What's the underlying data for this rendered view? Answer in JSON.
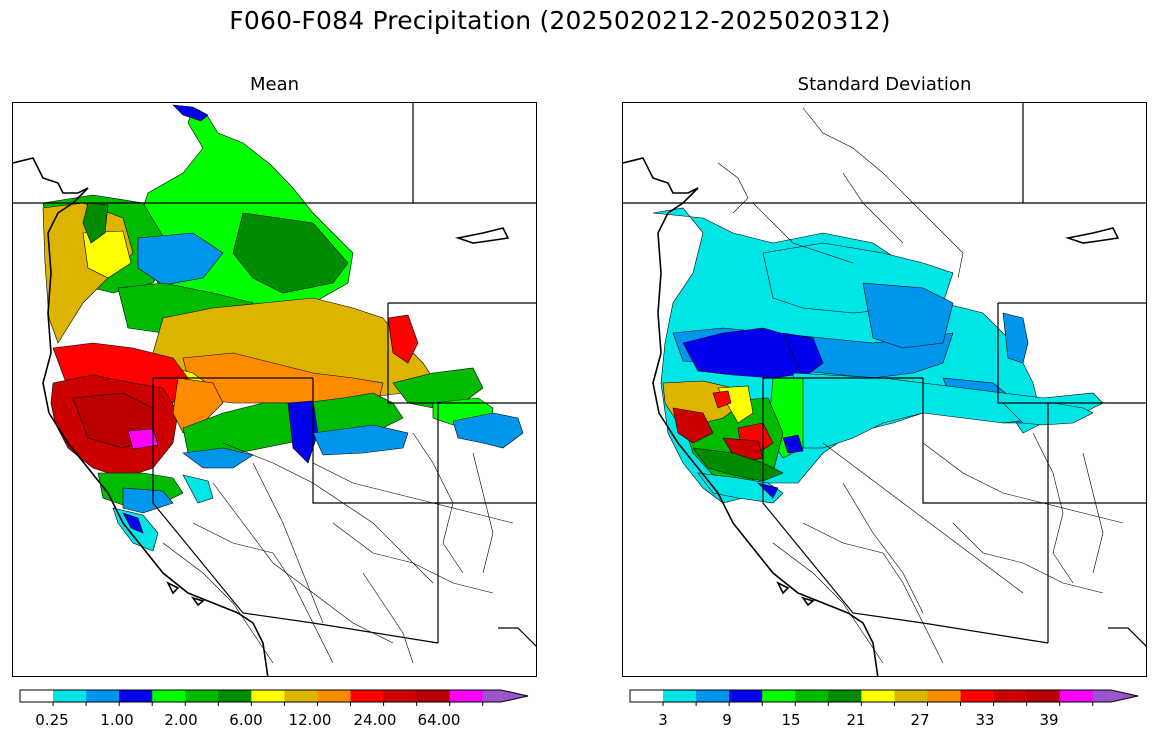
{
  "figure": {
    "title": "F060-F084 Precipitation (2025020212-2025020312)"
  },
  "panels": [
    {
      "id": "mean",
      "title": "Mean",
      "colorbar": {
        "colors": [
          "#ffffff",
          "#00e5e5",
          "#0096ee",
          "#0000ee",
          "#00ff00",
          "#00bb00",
          "#008c00",
          "#ffff00",
          "#ddb400",
          "#ff8c00",
          "#ff0000",
          "#cc0000",
          "#bb0000",
          "#ff00ff",
          "#9955cc"
        ],
        "tick_labels": [
          "0.25",
          "1.00",
          "2.00",
          "6.00",
          "12.00",
          "24.00",
          "64.00"
        ],
        "extend": "max"
      }
    },
    {
      "id": "std",
      "title": "Standard Deviation",
      "colorbar": {
        "colors": [
          "#ffffff",
          "#00e5e5",
          "#0096ee",
          "#0000ee",
          "#00ff00",
          "#00bb00",
          "#008c00",
          "#ffff00",
          "#ddb400",
          "#ff8c00",
          "#ff0000",
          "#cc0000",
          "#bb0000",
          "#ff00ff",
          "#9955cc"
        ],
        "tick_labels": [
          "3",
          "9",
          "15",
          "21",
          "27",
          "33",
          "39"
        ],
        "extend": "max"
      }
    }
  ]
}
